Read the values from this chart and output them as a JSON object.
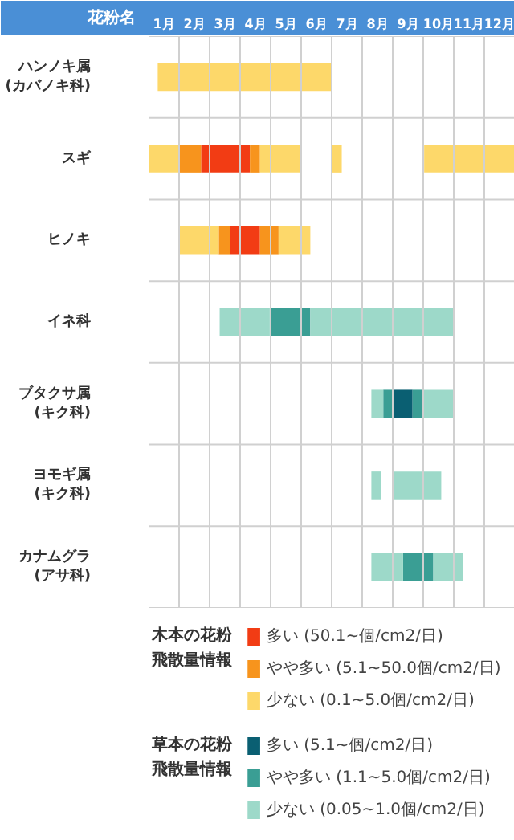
{
  "chart_data": {
    "type": "bar",
    "orientation": "horizontal",
    "ylabel": "花粉名",
    "categories": [
      "ハンノキ属\n(カバノキ科)",
      "スギ",
      "ヒノキ",
      "イネ科",
      "ブタクサ属\n(キク科)",
      "ヨモギ属\n(キク科)",
      "カナムグラ\n(アサ科)"
    ],
    "xlim": [
      0,
      12
    ],
    "xticks": [
      {
        "value": 0,
        "label": null
      },
      {
        "value": 0.5,
        "label": "1月"
      },
      {
        "value": 1,
        "label": null
      },
      {
        "value": 1.5,
        "label": "2月"
      },
      {
        "value": 2,
        "label": null
      },
      {
        "value": 2.5,
        "label": "3月"
      },
      {
        "value": 3,
        "label": null
      },
      {
        "value": 3.5,
        "label": "4月"
      },
      {
        "value": 4,
        "label": null
      },
      {
        "value": 4.5,
        "label": "5月"
      },
      {
        "value": 5,
        "label": null
      },
      {
        "value": 5.5,
        "label": "6月"
      },
      {
        "value": 6,
        "label": null
      },
      {
        "value": 6.5,
        "label": "7月"
      },
      {
        "value": 7,
        "label": null
      },
      {
        "value": 7.5,
        "label": "8月"
      },
      {
        "value": 8,
        "label": null
      },
      {
        "value": 8.5,
        "label": "9月"
      },
      {
        "value": 9,
        "label": null
      },
      {
        "value": 9.5,
        "label": "10月"
      },
      {
        "value": 10,
        "label": null
      },
      {
        "value": 10.5,
        "label": "11月"
      },
      {
        "value": 11,
        "label": null
      },
      {
        "value": 11.5,
        "label": "12月"
      }
    ],
    "grid": true,
    "legend": "bottom",
    "legend_title": [
      "木本の花粉飛散量情報",
      "草本の花粉飛散量情報"
    ],
    "series": [
      {
        "name": "多い (50.1~個/cm2/日)",
        "color": "#f23c14",
        "base": [
          null,
          1.72,
          2.67,
          null,
          null,
          null,
          null
        ],
        "values": [
          null,
          1.6,
          0.98,
          null,
          null,
          null,
          null
        ]
      },
      {
        "name": "やや多い (5.1~50.0個/cm2/日)",
        "color": "#f7941d",
        "base": [
          null,
          1.0,
          2.3,
          null,
          null,
          null,
          null
        ],
        "values": [
          null,
          0.72,
          0.37,
          null,
          null,
          null,
          null
        ]
      },
      {
        "name": "少ない (0.1~5.0個/cm2/日)",
        "color": "#fdd86a",
        "base": [
          0.3,
          0,
          1.0,
          null,
          null,
          null,
          null
        ],
        "values": [
          5.7,
          1.0,
          1.3,
          null,
          null,
          null,
          null
        ]
      },
      {
        "name": "多い (5.1~個/cm2/日)",
        "color": "#0a5f72",
        "base": [
          null,
          null,
          null,
          null,
          8.0,
          null,
          null
        ],
        "values": [
          null,
          null,
          null,
          null,
          0.65,
          null,
          null
        ]
      },
      {
        "name": "やや多い (1.1~5.0個/cm2/日)",
        "color": "#3a9e94",
        "base": [
          null,
          null,
          null,
          3.97,
          7.69,
          null,
          8.34
        ],
        "values": [
          null,
          null,
          null,
          1.33,
          0.31,
          null,
          0.99
        ]
      },
      {
        "name": "少ない (0.05~1.0個/cm2/日)",
        "color": "#9dd9c9",
        "base": [
          null,
          null,
          null,
          2.33,
          7.3,
          7.3,
          7.3
        ],
        "values": [
          null,
          null,
          null,
          1.64,
          0.39,
          0.31,
          1.04
        ]
      },
      {
        "color": "#f7941d",
        "base": [
          null,
          3.32,
          3.65,
          null,
          null,
          null,
          null
        ],
        "values": [
          null,
          0.33,
          0.61,
          null,
          null,
          null,
          null
        ]
      },
      {
        "color": "#fdd86a",
        "base": [
          null,
          3.65,
          4.26,
          null,
          null,
          null,
          null
        ],
        "values": [
          null,
          1.35,
          1.04,
          null,
          null,
          null,
          null
        ]
      },
      {
        "color": "#fdd86a",
        "base": [
          null,
          6.0,
          null,
          null,
          null,
          null,
          null
        ],
        "values": [
          null,
          0.33,
          null,
          null,
          null,
          null,
          null
        ]
      },
      {
        "color": "#fdd86a",
        "base": [
          null,
          9.03,
          null,
          null,
          null,
          null,
          null
        ],
        "values": [
          null,
          2.97,
          null,
          null,
          null,
          null,
          null
        ]
      },
      {
        "color": "#3a9e94",
        "base": [
          null,
          null,
          null,
          null,
          8.65,
          null,
          null
        ],
        "values": [
          null,
          null,
          null,
          null,
          0.35,
          null,
          null
        ]
      },
      {
        "color": "#9dd9c9",
        "base": [
          null,
          null,
          null,
          5.3,
          9.0,
          8.0,
          9.33
        ],
        "values": [
          null,
          null,
          null,
          4.7,
          1.0,
          1.59,
          0.96
        ]
      }
    ]
  }
}
